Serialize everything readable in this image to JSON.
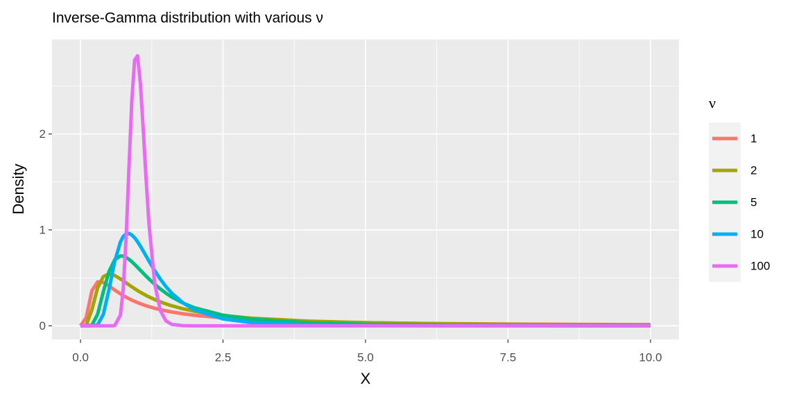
{
  "chart_data": {
    "type": "line",
    "title": "Inverse-Gamma distribution with various ν",
    "x_label": "X",
    "y_label": "Density",
    "legend_title": "ν",
    "x": [
      0,
      0.1,
      0.2,
      0.3,
      0.4,
      0.5,
      0.6,
      0.7,
      0.75,
      0.8,
      0.85,
      0.9,
      0.95,
      1,
      1.05,
      1.1,
      1.15,
      1.2,
      1.3,
      1.4,
      1.5,
      1.6,
      1.8,
      2,
      2.5,
      3,
      4,
      5,
      6,
      7,
      8,
      9,
      10
    ],
    "series": [
      {
        "name": "1",
        "color": "#F8766D",
        "values": [
          0,
          0.085,
          0.366,
          0.4586,
          0.4518,
          0.415,
          0.3731,
          0.3334,
          0.3153,
          0.2984,
          0.2827,
          0.2681,
          0.2545,
          0.242,
          0.2303,
          0.2195,
          0.2094,
          0.2,
          0.1832,
          0.1685,
          0.1556,
          0.1442,
          0.1251,
          0.1098,
          0.0826,
          0.065,
          0.044,
          0.0323,
          0.025,
          0.0201,
          0.0166,
          0.014,
          0.012
        ]
      },
      {
        "name": "2",
        "color": "#A3A500",
        "values": [
          0,
          0.0045,
          0.1684,
          0.3963,
          0.513,
          0.5413,
          0.5247,
          0.4892,
          0.4686,
          0.4477,
          0.4268,
          0.4064,
          0.3867,
          0.3679,
          0.3499,
          0.333,
          0.3169,
          0.3018,
          0.2742,
          0.2497,
          0.2282,
          0.2091,
          0.1771,
          0.1516,
          0.1073,
          0.0796,
          0.0487,
          0.0327,
          0.0235,
          0.0177,
          0.0138,
          0.011,
          0.009
        ]
      },
      {
        "name": "5",
        "color": "#00BF7D",
        "values": [
          0,
          0,
          0.0077,
          0.1209,
          0.3545,
          0.5667,
          0.6888,
          0.7282,
          0.7258,
          0.7133,
          0.6933,
          0.6684,
          0.6402,
          0.6102,
          0.5795,
          0.5486,
          0.5182,
          0.4889,
          0.4339,
          0.384,
          0.3397,
          0.3007,
          0.237,
          0.1883,
          0.1107,
          0.0691,
          0.0311,
          0.0161,
          0.0093,
          0.0057,
          0.0038,
          0.0026,
          0.0018
        ]
      },
      {
        "name": "10",
        "color": "#00B0F6",
        "values": [
          0,
          0,
          0,
          0.0103,
          0.1185,
          0.3784,
          0.6708,
          0.8744,
          0.9314,
          0.9587,
          0.9627,
          0.9473,
          0.918,
          0.8773,
          0.8306,
          0.7798,
          0.7279,
          0.6759,
          0.5766,
          0.4861,
          0.4077,
          0.341,
          0.238,
          0.167,
          0.0722,
          0.0338,
          0.0091,
          0.0031,
          0.0012,
          0.0005,
          0.0003,
          0.0001,
          0.0001
        ]
      },
      {
        "name": "100",
        "color": "#E76BF3",
        "values": [
          0,
          0,
          0,
          0,
          0,
          0,
          0.0019,
          0.111,
          0.383,
          0.918,
          1.648,
          2.346,
          2.772,
          2.815,
          2.529,
          2.054,
          1.535,
          1.072,
          0.446,
          0.159,
          0.0509,
          0.0152,
          0.0012,
          0.0001,
          0,
          0,
          0,
          0,
          0,
          0,
          0,
          0,
          0
        ]
      }
    ],
    "xlim": [
      -0.5,
      10.5
    ],
    "ylim": [
      -0.142,
      2.985
    ],
    "xticks": [
      {
        "value": 0,
        "label": "0.0"
      },
      2.5,
      {
        "value": 5,
        "label": "5.0"
      },
      7.5,
      {
        "value": 10,
        "label": "10.0"
      }
    ],
    "yticks": [
      0,
      1,
      2
    ],
    "xminor": [
      1.25,
      3.75,
      6.25,
      8.75
    ],
    "yminor": [
      0.5,
      1.5,
      2.5
    ],
    "grid": true,
    "legend": "right"
  }
}
